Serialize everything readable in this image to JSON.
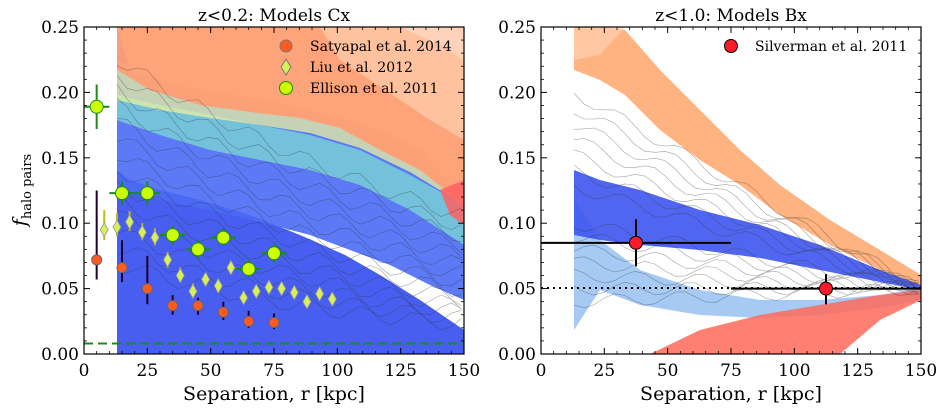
{
  "chart_data": [
    {
      "type": "scatter",
      "title": "z<0.2: Models Cx",
      "xlabel": "Separation, r [kpc]",
      "ylabel_main": "f",
      "ylabel_sub": "halo pairs",
      "xlim": [
        0,
        150
      ],
      "ylim": [
        0,
        0.25
      ],
      "xticks": [
        "0",
        "25",
        "50",
        "75",
        "100",
        "125",
        "150"
      ],
      "yticks": [
        "0.00",
        "0.05",
        "0.10",
        "0.15",
        "0.20",
        "0.25"
      ],
      "legend_position": "top-right",
      "colors": {
        "model_orange": "#ff9e74",
        "model_blue": "#3d55f0",
        "model_cyan": "#7fe0d0",
        "model_yellow": "#e8f0a0",
        "model_lines": "#333333",
        "dashed_line": "#1a8c1a"
      },
      "dashed_line_y": 0.008,
      "series": [
        {
          "name": "Satyapal et al. 2014",
          "color": "#ff5a1f",
          "marker": "circle",
          "points": [
            {
              "x": 5,
              "y": 0.072,
              "ylo": 0.057,
              "yhi": 0.125
            },
            {
              "x": 15,
              "y": 0.066,
              "ylo": 0.055,
              "yhi": 0.087
            },
            {
              "x": 25,
              "y": 0.05,
              "ylo": 0.038,
              "yhi": 0.075
            },
            {
              "x": 35,
              "y": 0.037,
              "ylo": 0.03,
              "yhi": 0.045
            },
            {
              "x": 45,
              "y": 0.037,
              "ylo": 0.03,
              "yhi": 0.043
            },
            {
              "x": 55,
              "y": 0.032,
              "ylo": 0.026,
              "yhi": 0.04
            },
            {
              "x": 65,
              "y": 0.025,
              "ylo": 0.02,
              "yhi": 0.033
            },
            {
              "x": 75,
              "y": 0.024,
              "ylo": 0.019,
              "yhi": 0.031
            }
          ]
        },
        {
          "name": "Liu et al. 2012",
          "color": "#d8f058",
          "marker": "diamond",
          "points": [
            {
              "x": 8,
              "y": 0.095,
              "ylo": 0.087,
              "yhi": 0.11
            },
            {
              "x": 13,
              "y": 0.097,
              "ylo": 0.09,
              "yhi": 0.108
            },
            {
              "x": 18,
              "y": 0.101,
              "ylo": 0.094,
              "yhi": 0.109
            },
            {
              "x": 23,
              "y": 0.093,
              "ylo": 0.087,
              "yhi": 0.1
            },
            {
              "x": 28,
              "y": 0.089,
              "ylo": 0.083,
              "yhi": 0.096
            },
            {
              "x": 33,
              "y": 0.072,
              "ylo": 0.066,
              "yhi": 0.078
            },
            {
              "x": 38,
              "y": 0.06,
              "ylo": 0.055,
              "yhi": 0.066
            },
            {
              "x": 43,
              "y": 0.048,
              "ylo": 0.043,
              "yhi": 0.054
            },
            {
              "x": 48,
              "y": 0.057,
              "ylo": 0.052,
              "yhi": 0.062
            },
            {
              "x": 53,
              "y": 0.052,
              "ylo": 0.047,
              "yhi": 0.057
            },
            {
              "x": 58,
              "y": 0.066,
              "ylo": 0.062,
              "yhi": 0.071
            },
            {
              "x": 63,
              "y": 0.043,
              "ylo": 0.039,
              "yhi": 0.048
            },
            {
              "x": 68,
              "y": 0.048,
              "ylo": 0.044,
              "yhi": 0.053
            },
            {
              "x": 73,
              "y": 0.051,
              "ylo": 0.047,
              "yhi": 0.056
            },
            {
              "x": 78,
              "y": 0.05,
              "ylo": 0.046,
              "yhi": 0.055
            },
            {
              "x": 83,
              "y": 0.047,
              "ylo": 0.043,
              "yhi": 0.052
            },
            {
              "x": 88,
              "y": 0.04,
              "ylo": 0.036,
              "yhi": 0.044
            },
            {
              "x": 93,
              "y": 0.046,
              "ylo": 0.042,
              "yhi": 0.05
            },
            {
              "x": 98,
              "y": 0.042,
              "ylo": 0.039,
              "yhi": 0.046
            }
          ]
        },
        {
          "name": "Ellison et al. 2011",
          "color": "#ccff00",
          "marker": "circle",
          "points": [
            {
              "x": 5,
              "y": 0.189,
              "ylo": 0.172,
              "yhi": 0.206,
              "xlo": 0,
              "xhi": 10
            },
            {
              "x": 15,
              "y": 0.123,
              "ylo": 0.114,
              "yhi": 0.132,
              "xlo": 10,
              "xhi": 20
            },
            {
              "x": 25,
              "y": 0.123,
              "ylo": 0.114,
              "yhi": 0.132,
              "xlo": 20,
              "xhi": 30
            },
            {
              "x": 35,
              "y": 0.091,
              "ylo": 0.084,
              "yhi": 0.098,
              "xlo": 30,
              "xhi": 40
            },
            {
              "x": 45,
              "y": 0.08,
              "ylo": 0.073,
              "yhi": 0.087,
              "xlo": 40,
              "xhi": 50
            },
            {
              "x": 55,
              "y": 0.089,
              "ylo": 0.083,
              "yhi": 0.096,
              "xlo": 50,
              "xhi": 60
            },
            {
              "x": 65,
              "y": 0.065,
              "ylo": 0.059,
              "yhi": 0.072,
              "xlo": 60,
              "xhi": 70
            },
            {
              "x": 75,
              "y": 0.077,
              "ylo": 0.07,
              "yhi": 0.084,
              "xlo": 70,
              "xhi": 80
            }
          ]
        }
      ]
    },
    {
      "type": "scatter",
      "title": "z<1.0: Models Bx",
      "xlabel": "Separation, r [kpc]",
      "xlim": [
        0,
        150
      ],
      "ylim": [
        0,
        0.25
      ],
      "xticks": [
        "0",
        "25",
        "50",
        "75",
        "100",
        "125",
        "150"
      ],
      "yticks": [
        "0.00",
        "0.05",
        "0.10",
        "0.15",
        "0.20",
        "0.25"
      ],
      "legend_position": "top-right",
      "colors": {
        "model_orange": "#ffa060",
        "model_blue": "#3d55f0",
        "model_red": "#ff6a5a",
        "model_lightblue": "#88b8f0",
        "model_lines": "#333333"
      },
      "dotted_line_y": 0.05,
      "series": [
        {
          "name": "Silverman et al. 2011",
          "color": "#ff1a2a",
          "marker": "circle",
          "points": [
            {
              "x": 37.5,
              "y": 0.085,
              "ylo": 0.067,
              "yhi": 0.103,
              "xlo": 0,
              "xhi": 75
            },
            {
              "x": 112.5,
              "y": 0.05,
              "ylo": 0.038,
              "yhi": 0.061,
              "xlo": 75,
              "xhi": 150
            }
          ]
        }
      ]
    }
  ]
}
